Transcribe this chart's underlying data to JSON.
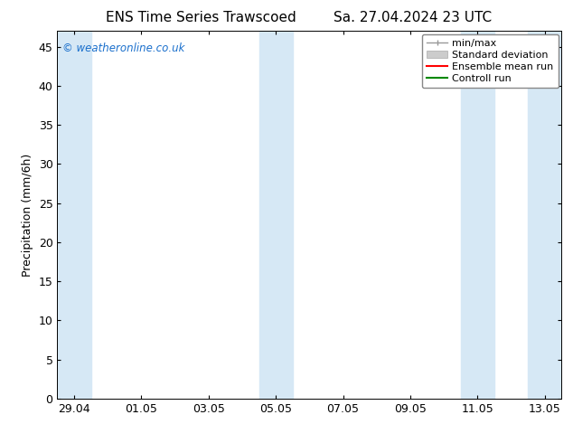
{
  "title_left": "ENS Time Series Trawscoed",
  "title_right": "Sa. 27.04.2024 23 UTC",
  "ylabel": "Precipitation (mm/6h)",
  "watermark": "© weatheronline.co.uk",
  "watermark_color": "#1a6fcc",
  "ylim": [
    0,
    47
  ],
  "yticks": [
    0,
    5,
    10,
    15,
    20,
    25,
    30,
    35,
    40,
    45
  ],
  "background_color": "#ffffff",
  "plot_bg_color": "#ffffff",
  "shaded_band_color": "#d6e8f5",
  "shaded_band_alpha": 1.0,
  "x_tick_labels": [
    "29.04",
    "01.05",
    "03.05",
    "05.05",
    "07.05",
    "09.05",
    "11.05",
    "13.05"
  ],
  "x_tick_positions": [
    0,
    2,
    4,
    6,
    8,
    10,
    12,
    14
  ],
  "shaded_columns": [
    {
      "x_start": -0.5,
      "x_end": 0.5
    },
    {
      "x_start": 5.5,
      "x_end": 6.5
    },
    {
      "x_start": 11.5,
      "x_end": 12.5
    },
    {
      "x_start": 13.5,
      "x_end": 14.5
    }
  ],
  "x_min": -0.5,
  "x_max": 14.5,
  "title_fontsize": 11,
  "label_fontsize": 9,
  "tick_fontsize": 9,
  "legend_fontsize": 8
}
